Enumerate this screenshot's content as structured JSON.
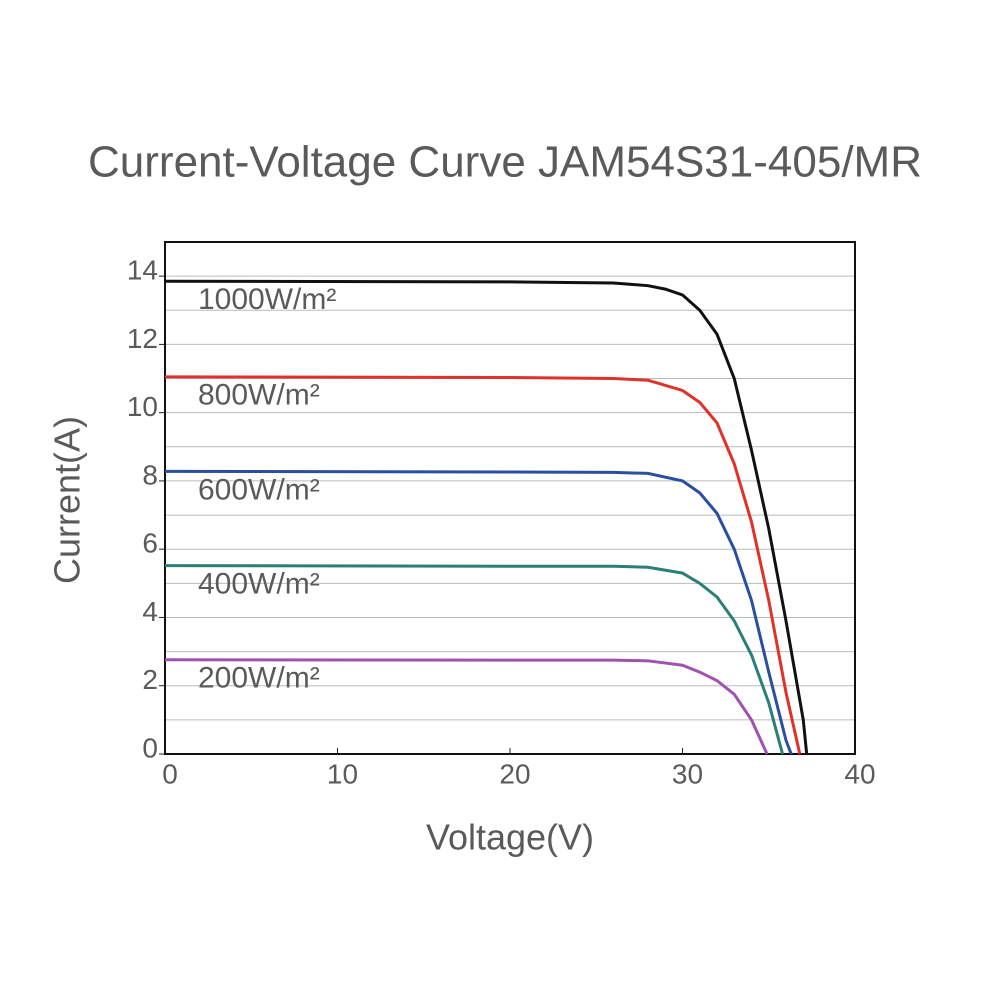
{
  "chart_data": {
    "type": "line",
    "title": "Current-Voltage Curve   JAM54S31-405/MR",
    "x_label": "Voltage(V)",
    "y_label": "Current(A)",
    "xlim": [
      0,
      40
    ],
    "xticks": [
      0,
      10,
      20,
      30,
      40
    ],
    "ylim": [
      0,
      15
    ],
    "yticks": [
      0,
      2,
      4,
      6,
      8,
      10,
      12,
      14
    ],
    "ygrid": [
      1,
      2,
      3,
      4,
      5,
      6,
      7,
      8,
      9,
      10,
      11,
      12,
      13,
      14
    ],
    "series": [
      {
        "name": "1000W/m²",
        "color": "#111111",
        "x": [
          0,
          20,
          26,
          28,
          29,
          30,
          31,
          32,
          33,
          34,
          35,
          36,
          37,
          37.2
        ],
        "values": [
          13.85,
          13.83,
          13.8,
          13.72,
          13.62,
          13.45,
          13.0,
          12.3,
          11.0,
          8.9,
          6.6,
          3.9,
          1.0,
          0
        ]
      },
      {
        "name": "800W/m²",
        "color": "#e0312a",
        "x": [
          0,
          20,
          26,
          28,
          30,
          31,
          32,
          33,
          34,
          35,
          36,
          36.8
        ],
        "values": [
          11.05,
          11.03,
          11.0,
          10.95,
          10.65,
          10.3,
          9.7,
          8.5,
          6.8,
          4.5,
          1.8,
          0
        ]
      },
      {
        "name": "600W/m²",
        "color": "#2a4fa0",
        "x": [
          0,
          20,
          26,
          28,
          30,
          31,
          32,
          33,
          34,
          35,
          36,
          36.3
        ],
        "values": [
          8.28,
          8.26,
          8.25,
          8.22,
          8.0,
          7.65,
          7.05,
          6.0,
          4.5,
          2.4,
          0.4,
          0
        ]
      },
      {
        "name": "400W/m²",
        "color": "#2a7f78",
        "x": [
          0,
          20,
          26,
          28,
          30,
          31,
          32,
          33,
          34,
          35,
          35.8
        ],
        "values": [
          5.52,
          5.5,
          5.5,
          5.47,
          5.3,
          5.0,
          4.6,
          3.9,
          2.9,
          1.5,
          0
        ]
      },
      {
        "name": "200W/m²",
        "color": "#a052b0",
        "x": [
          0,
          20,
          26,
          28,
          30,
          31,
          32,
          33,
          34,
          34.9
        ],
        "values": [
          2.76,
          2.75,
          2.75,
          2.73,
          2.6,
          2.4,
          2.15,
          1.75,
          1.0,
          0
        ]
      }
    ]
  }
}
